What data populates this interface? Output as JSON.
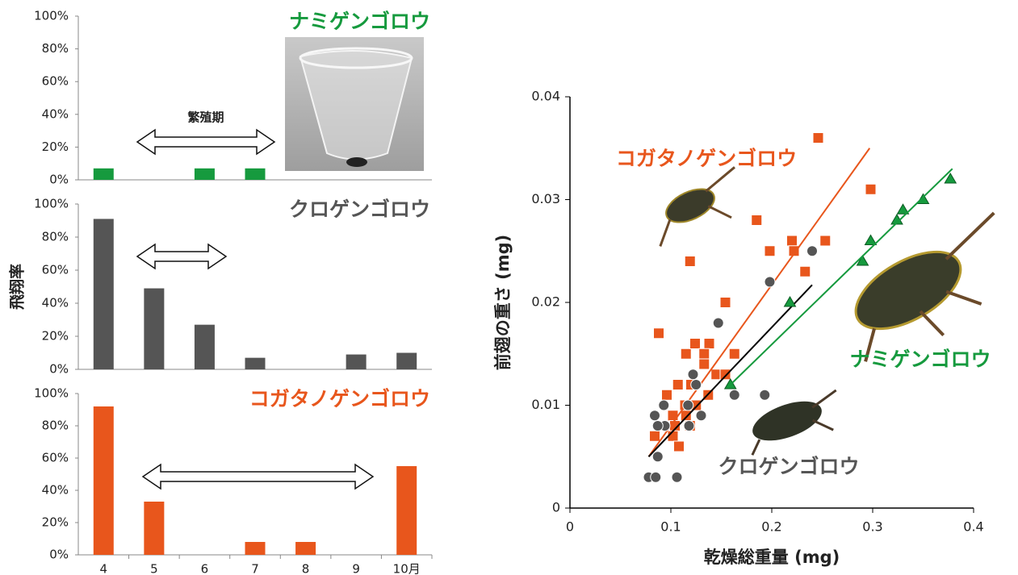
{
  "chart_data": [
    {
      "type": "bar",
      "title": "ナミゲンゴロウ",
      "color": "#169a3e",
      "annotation": "繁殖期",
      "values": [
        7,
        0,
        7,
        7,
        0,
        0,
        0
      ],
      "ylim": [
        0,
        100
      ],
      "yticks": [
        {
          "value": 0,
          "label": "0%"
        },
        {
          "value": 20,
          "label": "20%"
        },
        {
          "value": 40,
          "label": "40%"
        },
        {
          "value": 60,
          "label": "60%"
        },
        {
          "value": 80,
          "label": "80%"
        },
        {
          "value": 100,
          "label": "100%"
        }
      ]
    },
    {
      "type": "bar",
      "title": "クロゲンゴロウ",
      "color": "#555555",
      "ylabel": "飛翔率",
      "values": [
        91,
        49,
        27,
        7,
        0,
        9,
        10
      ],
      "ylim": [
        0,
        100
      ],
      "yticks": [
        {
          "value": 0,
          "label": "0%"
        },
        {
          "value": 20,
          "label": "20%"
        },
        {
          "value": 40,
          "label": "40%"
        },
        {
          "value": 60,
          "label": "60%"
        },
        {
          "value": 80,
          "label": "80%"
        },
        {
          "value": 100,
          "label": "100%"
        }
      ]
    },
    {
      "type": "bar",
      "title": "コガタノゲンゴロウ",
      "color": "#e8561c",
      "categories": [
        "4",
        "5",
        "6",
        "7",
        "8",
        "9",
        "10月"
      ],
      "values": [
        92,
        33,
        0,
        8,
        8,
        0,
        55
      ],
      "ylim": [
        0,
        100
      ],
      "yticks": [
        {
          "value": 0,
          "label": "0%"
        },
        {
          "value": 20,
          "label": "20%"
        },
        {
          "value": 40,
          "label": "40%"
        },
        {
          "value": 60,
          "label": "60%"
        },
        {
          "value": 80,
          "label": "80%"
        },
        {
          "value": 100,
          "label": "100%"
        }
      ]
    },
    {
      "type": "scatter",
      "xlabel": "乾燥総重量 (mg)",
      "ylabel": "前翅の重さ (mg)",
      "xlim": [
        0,
        0.4
      ],
      "xticks": [
        0,
        0.1,
        0.2,
        0.3,
        0.4
      ],
      "ylim": [
        0,
        0.04
      ],
      "yticks": [
        0,
        0.01,
        0.02,
        0.03,
        0.04
      ],
      "series": [
        {
          "name": "コガタノゲンゴロウ",
          "color": "#e8561c",
          "marker": "square",
          "x": [
            0.246,
            0.298,
            0.119,
            0.185,
            0.198,
            0.22,
            0.222,
            0.253,
            0.233,
            0.154,
            0.088,
            0.115,
            0.124,
            0.138,
            0.133,
            0.163,
            0.133,
            0.145,
            0.154,
            0.107,
            0.12,
            0.096,
            0.137,
            0.114,
            0.125,
            0.102,
            0.115,
            0.119,
            0.104,
            0.084,
            0.102,
            0.108
          ],
          "y": [
            0.036,
            0.031,
            0.024,
            0.028,
            0.025,
            0.026,
            0.025,
            0.026,
            0.023,
            0.02,
            0.017,
            0.015,
            0.016,
            0.016,
            0.015,
            0.015,
            0.014,
            0.013,
            0.013,
            0.012,
            0.012,
            0.011,
            0.011,
            0.01,
            0.01,
            0.009,
            0.009,
            0.008,
            0.008,
            0.007,
            0.007,
            0.006
          ],
          "trend": {
            "x": [
              0.078,
              0.297
            ],
            "y": [
              0.005,
              0.035
            ]
          }
        },
        {
          "name": "クロゲンゴロウ",
          "color": "#555555",
          "marker": "circle",
          "x": [
            0.24,
            0.198,
            0.147,
            0.122,
            0.125,
            0.193,
            0.163,
            0.093,
            0.117,
            0.084,
            0.13,
            0.094,
            0.087,
            0.118,
            0.087,
            0.078,
            0.085,
            0.106
          ],
          "y": [
            0.025,
            0.022,
            0.018,
            0.013,
            0.012,
            0.011,
            0.011,
            0.01,
            0.01,
            0.009,
            0.009,
            0.008,
            0.008,
            0.008,
            0.005,
            0.003,
            0.003,
            0.003
          ],
          "trend": {
            "x": [
              0.078,
              0.24
            ],
            "y": [
              0.005,
              0.0217
            ]
          }
        },
        {
          "name": "ナミゲンゴロウ",
          "color": "#169a3e",
          "marker": "triangle",
          "x": [
            0.377,
            0.35,
            0.33,
            0.324,
            0.298,
            0.29,
            0.218,
            0.159
          ],
          "y": [
            0.032,
            0.03,
            0.029,
            0.028,
            0.026,
            0.024,
            0.02,
            0.012
          ],
          "trend": {
            "x": [
              0.159,
              0.379
            ],
            "y": [
              0.012,
              0.033
            ]
          }
        }
      ]
    }
  ]
}
